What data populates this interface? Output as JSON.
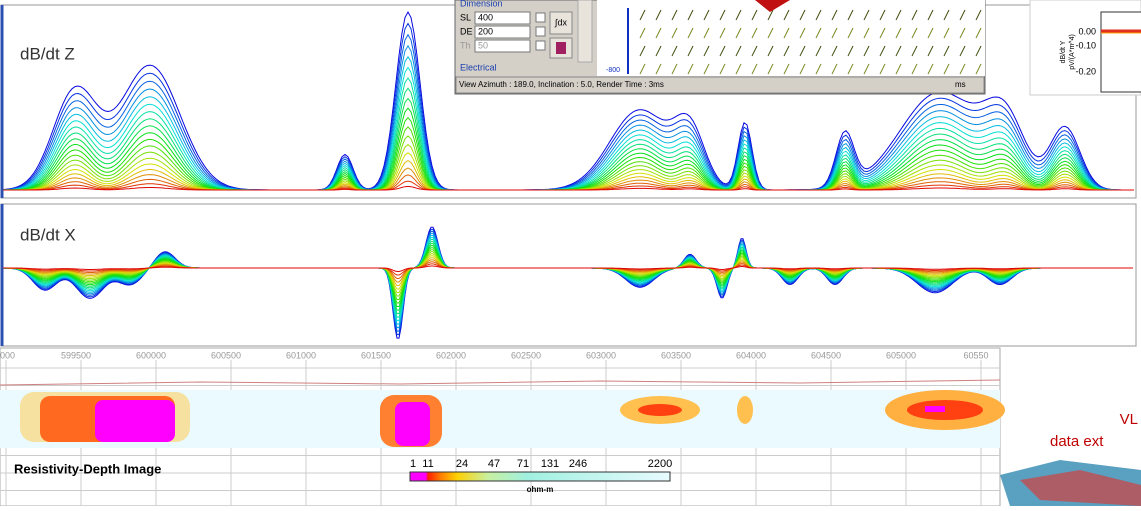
{
  "panels": {
    "z_label": "dB/dt Z",
    "x_label": "dB/dt X"
  },
  "viewer": {
    "section": "Dimension",
    "fields": [
      {
        "name": "SL",
        "value": "400"
      },
      {
        "name": "DE",
        "value": "200"
      },
      {
        "name": "Th",
        "value": "50"
      }
    ],
    "group": "Electrical",
    "status": "View Azimuth : 189.0, Inclination : 5.0, Render Time : 3ms",
    "status_unit": "ms",
    "axis_label": "-800"
  },
  "y_inset": {
    "ticks": [
      "0.00",
      "-0.10",
      "-0.20"
    ],
    "title": "dB/dt Y",
    "unit": "pV/(A*m^4)"
  },
  "easting": [
    "000",
    "599500",
    "600000",
    "600500",
    "601000",
    "601500",
    "602000",
    "602500",
    "603000",
    "603500",
    "604000",
    "604500",
    "605000",
    "60550"
  ],
  "section_title": "Resistivity-Depth Image",
  "colorbar": {
    "labels": [
      "1",
      "11",
      "24",
      "47",
      "71",
      "131",
      "246",
      "2200"
    ],
    "unit": "ohm-m"
  },
  "right_text": [
    "VL",
    "data ext"
  ]
}
